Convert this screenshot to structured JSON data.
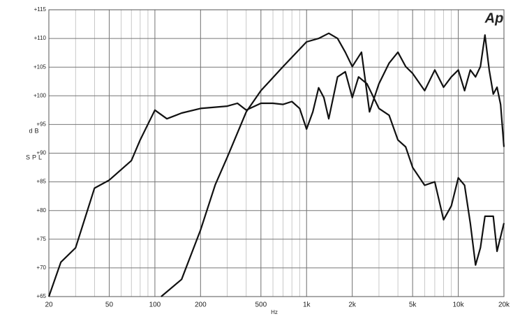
{
  "chart_data": {
    "type": "line",
    "logo": "Ap",
    "xlabel": "Hz",
    "ylabel": [
      "dB",
      "SPL"
    ],
    "xscale": "log",
    "grid": true,
    "minor_grid": true,
    "xlim": [
      20,
      20000
    ],
    "ylim": [
      65,
      115
    ],
    "xticks": [
      20,
      50,
      100,
      200,
      500,
      {
        "value": 1000,
        "label": "1k"
      },
      {
        "value": 2000,
        "label": "2k"
      },
      {
        "value": 5000,
        "label": "5k"
      },
      {
        "value": 10000,
        "label": "10k"
      },
      {
        "value": 20000,
        "label": "20k"
      }
    ],
    "yticks": [
      {
        "value": 65,
        "label": "+65"
      },
      {
        "value": 70,
        "label": "+70"
      },
      {
        "value": 75,
        "label": "+75"
      },
      {
        "value": 80,
        "label": "+80"
      },
      {
        "value": 85,
        "label": "+85"
      },
      {
        "value": 90,
        "label": "+90"
      },
      {
        "value": 95,
        "label": "+95"
      },
      {
        "value": 100,
        "label": "+100"
      },
      {
        "value": 105,
        "label": "+105"
      },
      {
        "value": 110,
        "label": "+110"
      },
      {
        "value": 115,
        "label": "+115"
      }
    ],
    "series": [
      {
        "color": "#111111",
        "x": [
          20,
          24,
          30,
          40,
          50,
          70,
          80,
          100,
          120,
          150,
          200,
          300,
          350,
          400,
          500,
          600,
          700,
          800,
          900,
          1000,
          1100,
          1200,
          1300,
          1400,
          1600,
          1800,
          2000,
          2200,
          2500,
          3000,
          3500,
          4000,
          4500,
          5000,
          6000,
          7000,
          8000,
          9000,
          10000,
          11000,
          12000,
          13000,
          14000,
          15000,
          17000,
          18000,
          20000
        ],
        "values": [
          65,
          71,
          73.5,
          83.9,
          85.3,
          88.7,
          92.3,
          97.5,
          96,
          97,
          97.8,
          98.2,
          98.7,
          97.5,
          98.7,
          98.7,
          98.5,
          99,
          97.8,
          94.2,
          97.2,
          101.4,
          99.7,
          96,
          103.3,
          104.2,
          99.7,
          103.3,
          102.1,
          97.8,
          96.6,
          92.3,
          91.1,
          87.5,
          84.4,
          85,
          78.4,
          80.8,
          85.7,
          84.4,
          77.8,
          70.5,
          73.5,
          79,
          79,
          72.9,
          77.8
        ]
      },
      {
        "color": "#111111",
        "x": [
          110,
          150,
          200,
          250,
          300,
          400,
          500,
          700,
          1000,
          1200,
          1400,
          1600,
          1800,
          2000,
          2300,
          2600,
          3000,
          3500,
          4000,
          4500,
          5000,
          6000,
          7000,
          8000,
          9000,
          10000,
          11000,
          12000,
          13000,
          14000,
          15000,
          16000,
          17000,
          18000,
          19000,
          20000
        ],
        "values": [
          65,
          68,
          76.6,
          84.5,
          89.3,
          97.2,
          100.9,
          105.1,
          109.4,
          110,
          110.9,
          110,
          107.6,
          105.1,
          107.6,
          97.2,
          102.1,
          105.7,
          107.6,
          105.1,
          103.9,
          100.9,
          104.5,
          101.5,
          103.3,
          104.5,
          100.9,
          104.5,
          103.3,
          105.1,
          110.6,
          104.5,
          100.3,
          101.5,
          98.5,
          91.1
        ]
      }
    ]
  }
}
